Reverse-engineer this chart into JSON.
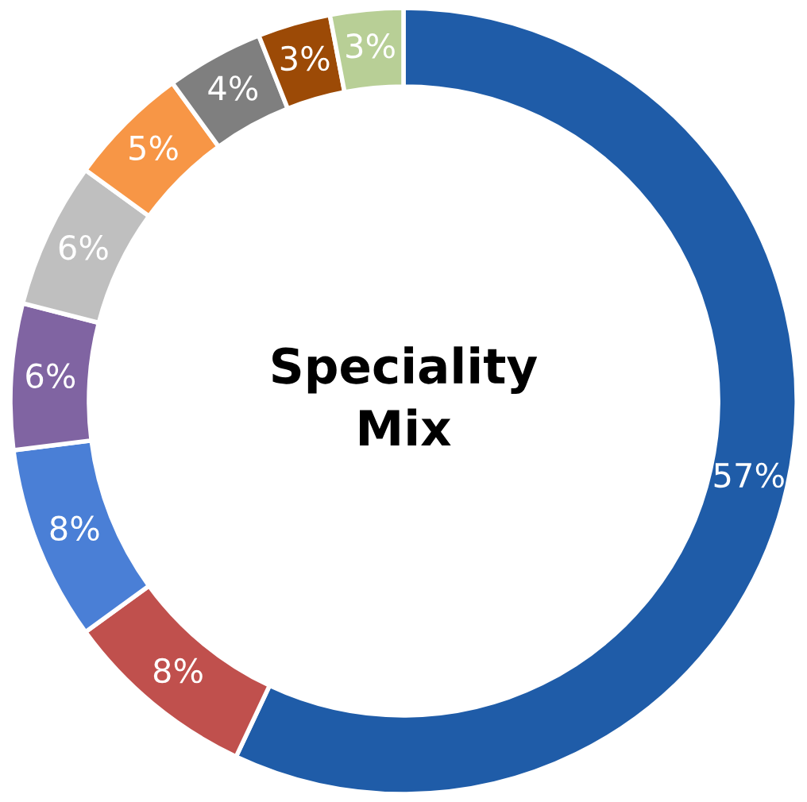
{
  "chart_data": {
    "type": "donut",
    "title": "Speciality\nMix",
    "categories": [
      null,
      null,
      null,
      null,
      null,
      null,
      null,
      null,
      null
    ],
    "values": [
      57,
      8,
      8,
      6,
      6,
      5,
      4,
      3,
      3
    ],
    "colors": [
      "#1f5ca8",
      "#c0504d",
      "#4a7fd6",
      "#8064a2",
      "#bfbfbf",
      "#f79646",
      "#7f7f7f",
      "#9c4a06",
      "#b8cf96"
    ],
    "value_labels": [
      "57%",
      "8%",
      "8%",
      "6%",
      "6%",
      "5%",
      "4%",
      "3%",
      "3%"
    ]
  }
}
